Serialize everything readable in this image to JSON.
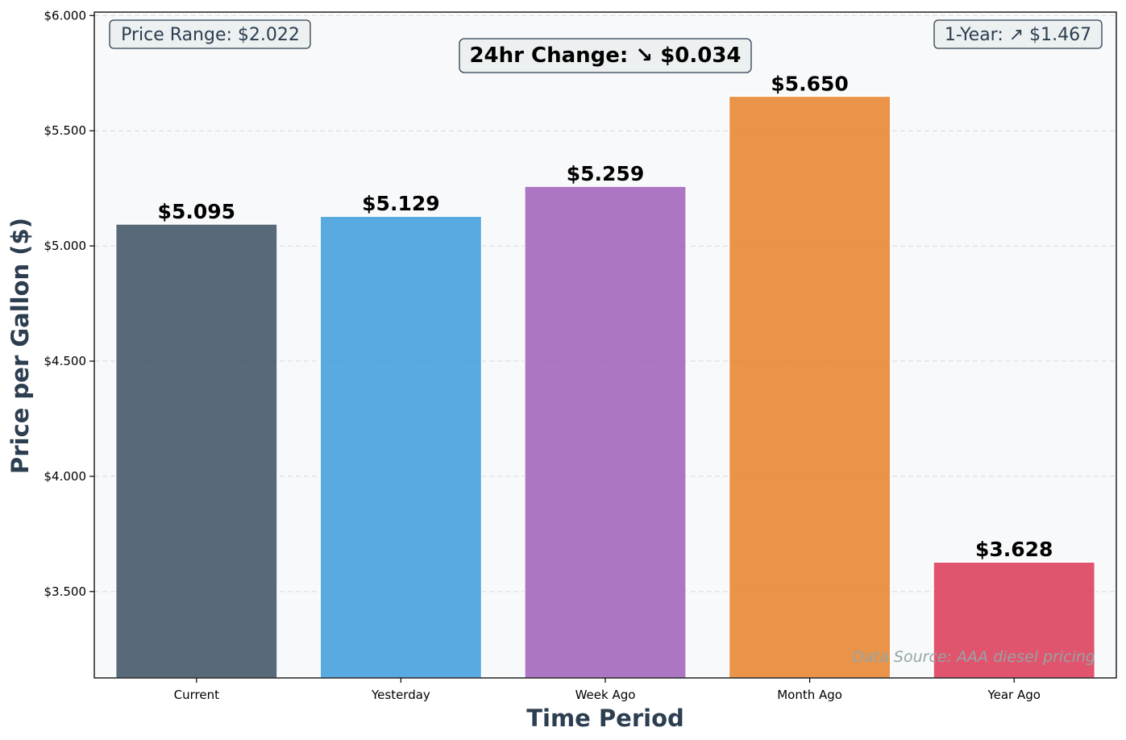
{
  "chart_data": {
    "type": "bar",
    "categories": [
      "Current",
      "Yesterday",
      "Week Ago",
      "Month Ago",
      "Year Ago"
    ],
    "values": [
      5.095,
      5.129,
      5.259,
      5.65,
      3.628
    ],
    "value_labels": [
      "$5.095",
      "$5.129",
      "$5.259",
      "$5.650",
      "$3.628"
    ],
    "colors": [
      "#34495e",
      "#3498db",
      "#9b59b6",
      "#e67e22",
      "#dc2f4e"
    ],
    "xlabel": "Time Period",
    "ylabel": "Price per Gallon ($)",
    "ylim": [
      3.125,
      6.015
    ],
    "yticks": [
      3.5,
      4.0,
      4.5,
      5.0,
      5.5,
      6.0
    ],
    "ytick_labels": [
      "$3.500",
      "$4.000",
      "$4.500",
      "$5.000",
      "$5.500",
      "$6.000"
    ],
    "grid": "horizontal dashed",
    "annotations": {
      "price_range": "Price Range: $2.022",
      "change_24hr": "24hr Change: ↘ $0.034",
      "one_year": "1-Year: ↗ $1.467",
      "source": "Data Source: AAA diesel pricing"
    }
  }
}
